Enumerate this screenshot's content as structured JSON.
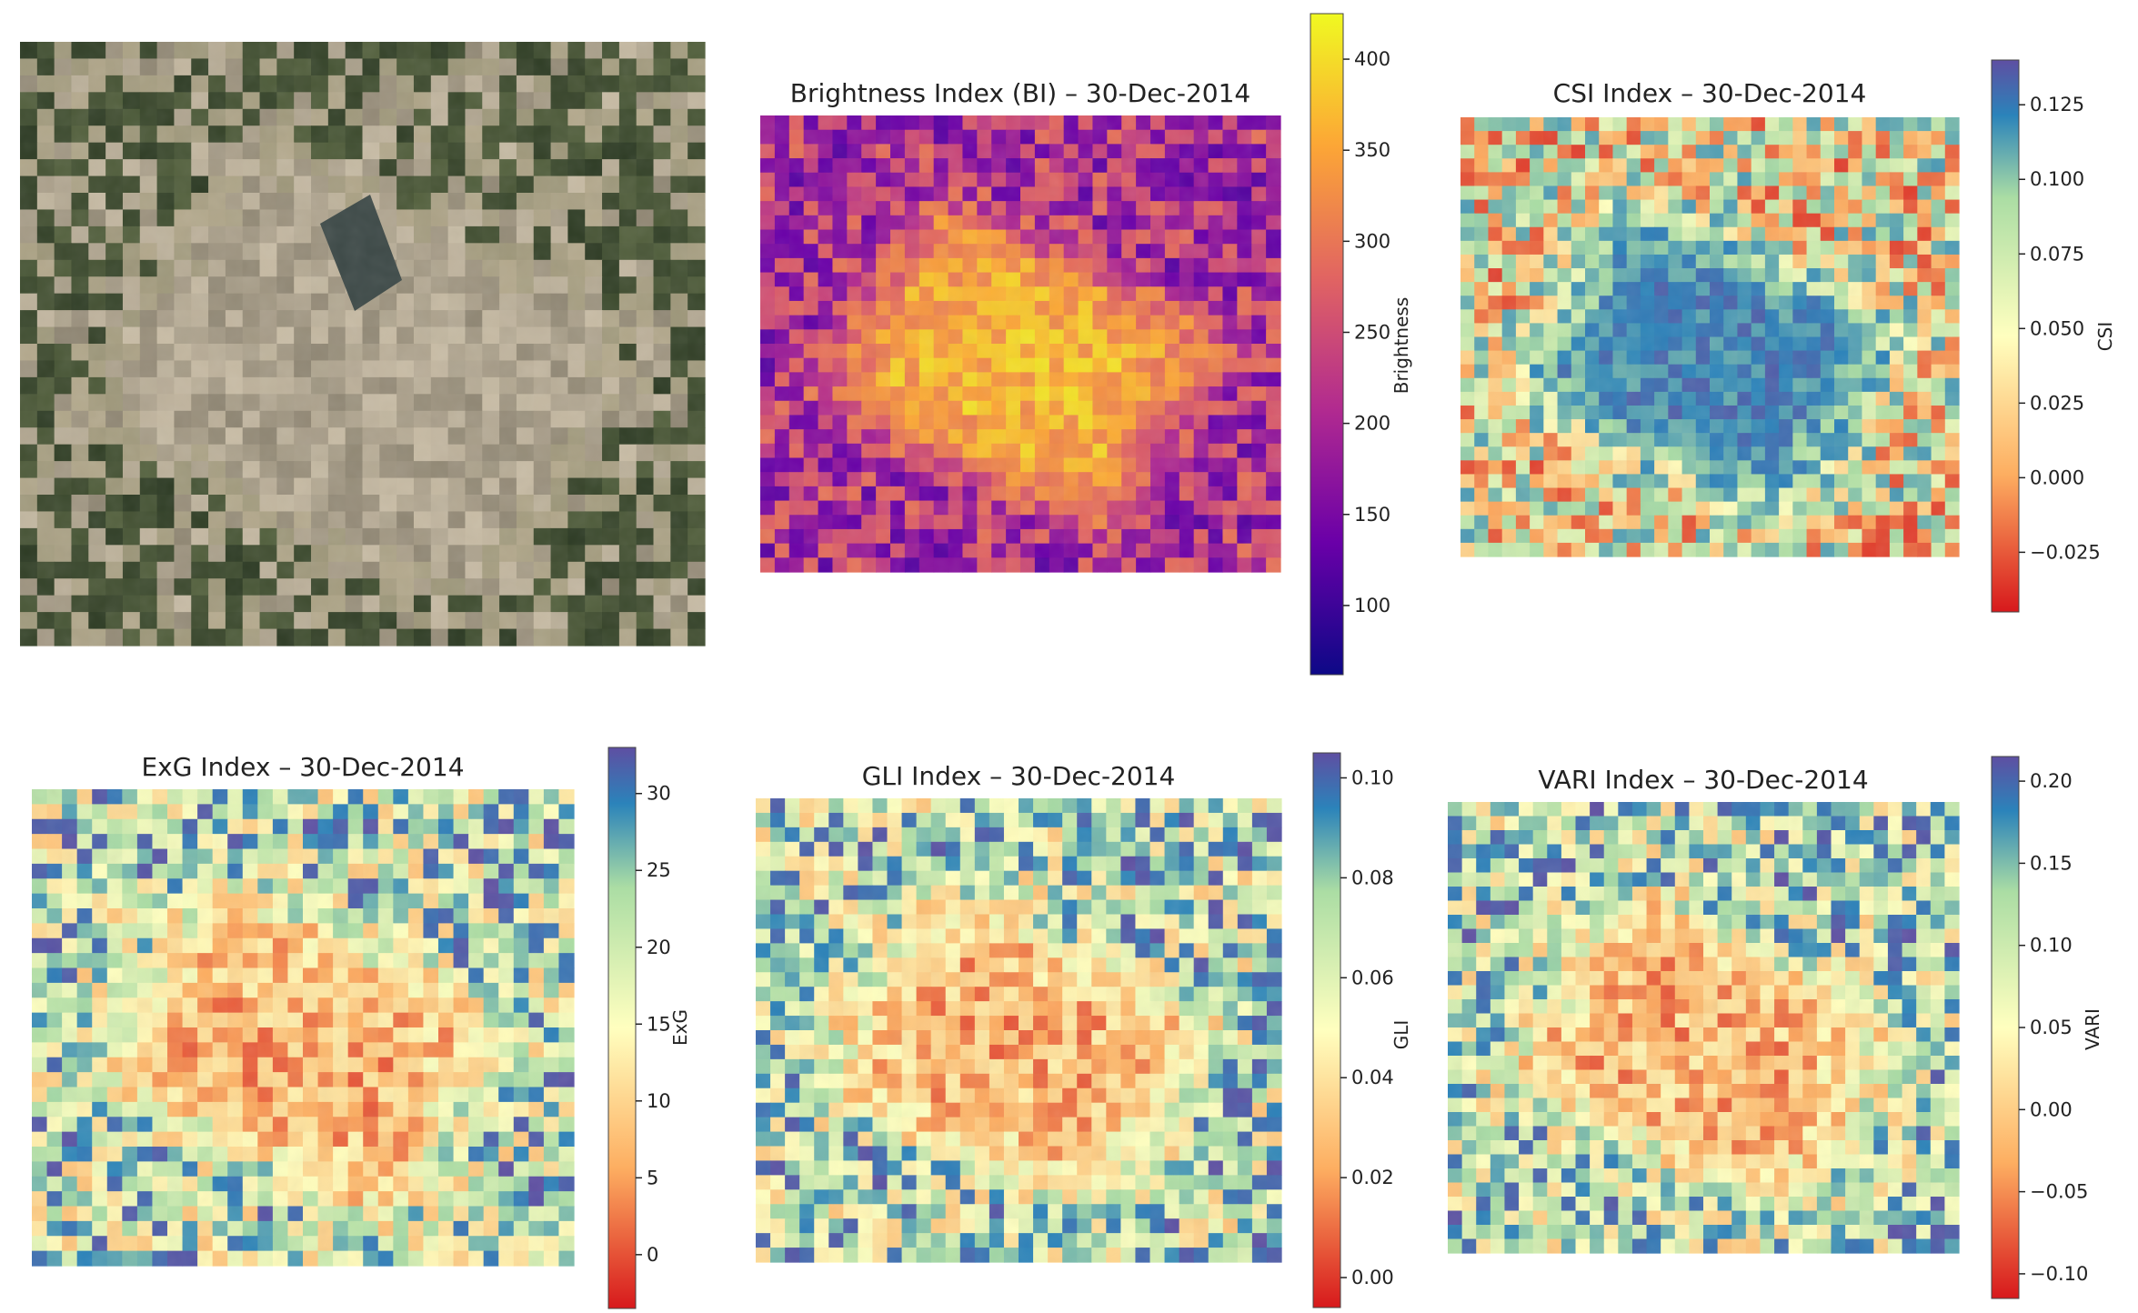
{
  "colors": {
    "background": "#ffffff",
    "plasma": [
      "#0d0887",
      "#6a00a8",
      "#b12a90",
      "#e16462",
      "#fca636",
      "#f0f921"
    ],
    "spectral": [
      "#d7191c",
      "#fdae61",
      "#ffffbf",
      "#abdda4",
      "#2b83ba",
      "#5e4fa2"
    ]
  },
  "chart_data": [
    {
      "id": "rgb",
      "type": "image",
      "title": "",
      "description_colors": [
        "#5c6b48",
        "#a79c86"
      ]
    },
    {
      "id": "bi",
      "type": "heatmap",
      "title": "Brightness Index (BI) – 30-Dec-2014",
      "colorbar_label": "Brightness",
      "colormap": "plasma",
      "range": [
        62,
        425
      ],
      "ticks": [
        "100",
        "150",
        "200",
        "250",
        "300",
        "350",
        "400"
      ],
      "tick_values": [
        100,
        150,
        200,
        250,
        300,
        350,
        400
      ]
    },
    {
      "id": "csi",
      "type": "heatmap",
      "title": "CSI Index – 30-Dec-2014",
      "colorbar_label": "CSI",
      "colormap": "spectral",
      "range": [
        -0.045,
        0.14
      ],
      "ticks": [
        "−0.025",
        "0.000",
        "0.025",
        "0.050",
        "0.075",
        "0.100",
        "0.125"
      ],
      "tick_values": [
        -0.025,
        0.0,
        0.025,
        0.05,
        0.075,
        0.1,
        0.125
      ]
    },
    {
      "id": "exg",
      "type": "heatmap",
      "title": "ExG Index – 30-Dec-2014",
      "colorbar_label": "ExG",
      "colormap": "spectral",
      "range": [
        -3.5,
        33
      ],
      "ticks": [
        "0",
        "5",
        "10",
        "15",
        "20",
        "25",
        "30"
      ],
      "tick_values": [
        0,
        5,
        10,
        15,
        20,
        25,
        30
      ]
    },
    {
      "id": "gli",
      "type": "heatmap",
      "title": "GLI Index – 30-Dec-2014",
      "colorbar_label": "GLI",
      "colormap": "spectral",
      "range": [
        -0.006,
        0.105
      ],
      "ticks": [
        "0.00",
        "0.02",
        "0.04",
        "0.06",
        "0.08",
        "0.10"
      ],
      "tick_values": [
        0.0,
        0.02,
        0.04,
        0.06,
        0.08,
        0.1
      ]
    },
    {
      "id": "vari",
      "type": "heatmap",
      "title": "VARI Index – 30-Dec-2014",
      "colorbar_label": "VARI",
      "colormap": "spectral",
      "range": [
        -0.115,
        0.215
      ],
      "ticks": [
        "−0.10",
        "−0.05",
        "0.00",
        "0.05",
        "0.10",
        "0.15",
        "0.20"
      ],
      "tick_values": [
        -0.1,
        -0.05,
        0.0,
        0.05,
        0.1,
        0.15,
        0.2
      ]
    }
  ]
}
